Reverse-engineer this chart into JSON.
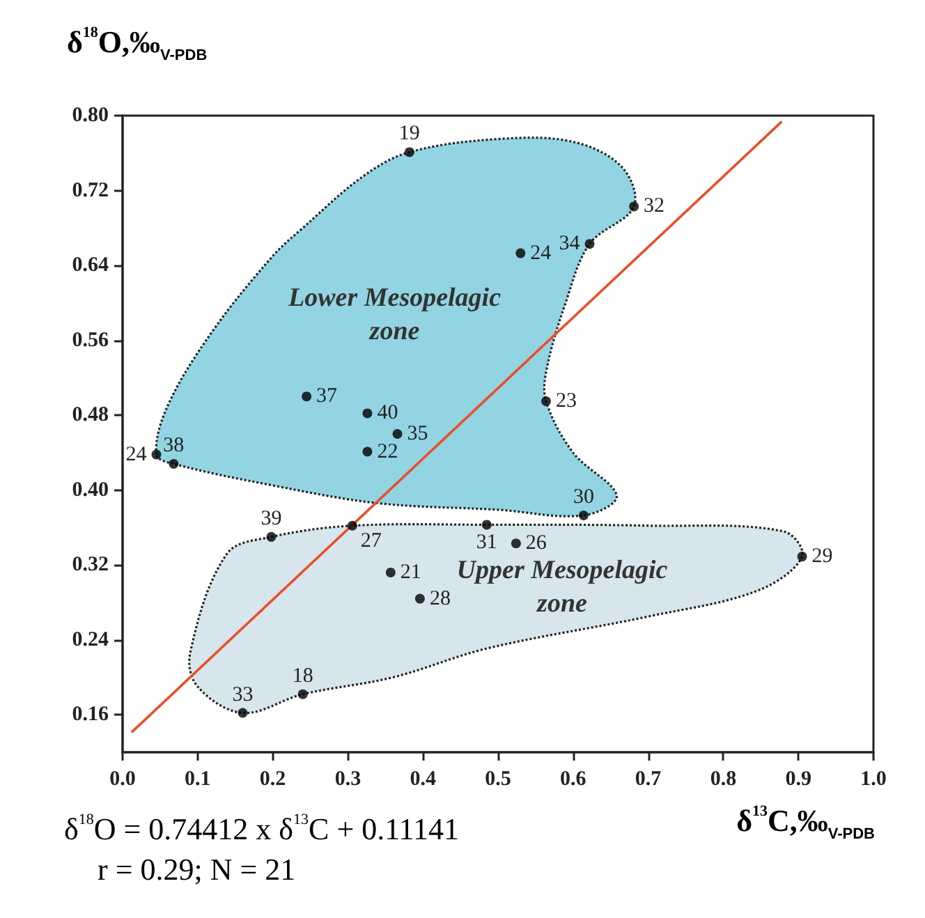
{
  "chart_data": {
    "type": "scatter",
    "xlabel": "δ$^{13}$C,‰$_{V-PDB}$",
    "ylabel": "δ$^{18}$O,‰$_{V-PDB}$",
    "xlim": [
      0,
      1
    ],
    "xticks": [
      {
        "value": 0,
        "label": "0.0"
      },
      0.1,
      0.2,
      0.3,
      0.4,
      0.5,
      0.6,
      0.7,
      0.8,
      0.9,
      {
        "value": 1,
        "label": "1.0"
      }
    ],
    "ylim": [
      0.12,
      0.8
    ],
    "yticks": [
      {
        "value": 0.16,
        "label": "0.16"
      },
      {
        "value": 0.24,
        "label": "0.24"
      },
      {
        "value": 0.32,
        "label": "0.32"
      },
      {
        "value": 0.4,
        "label": "0.40"
      },
      {
        "value": 0.48,
        "label": "0.48"
      },
      {
        "value": 0.56,
        "label": "0.56"
      },
      {
        "value": 0.64,
        "label": "0.64"
      },
      {
        "value": 0.72,
        "label": "0.72"
      },
      {
        "value": 0.8,
        "label": "0.80"
      }
    ],
    "grid": false,
    "marker": "circle",
    "series": [
      {
        "type": "area",
        "name": "Lower Mesopelagic zone",
        "color": "#93d4e3",
        "line_style": "dotted",
        "marker": "none",
        "x": [
          0.045,
          0.06,
          0.12,
          0.2,
          0.24,
          0.32,
          0.382,
          0.5,
          0.6,
          0.665,
          0.681,
          0.622,
          0.59,
          0.565,
          0.564,
          0.6,
          0.658,
          0.614,
          0.5,
          0.34,
          0.2,
          0.068
        ],
        "values": [
          0.438,
          0.49,
          0.57,
          0.65,
          0.68,
          0.735,
          0.761,
          0.775,
          0.772,
          0.745,
          0.703,
          0.663,
          0.6,
          0.53,
          0.495,
          0.44,
          0.394,
          0.373,
          0.379,
          0.386,
          0.405,
          0.428
        ]
      },
      {
        "type": "area",
        "name": "Upper Mesopelagic zone",
        "color": "#d6e6ec",
        "line_style": "dotted",
        "marker": "none",
        "x": [
          0.198,
          0.306,
          0.485,
          0.7,
          0.88,
          0.905,
          0.847,
          0.7,
          0.486,
          0.36,
          0.24,
          0.16,
          0.1,
          0.09,
          0.139
        ],
        "values": [
          0.35,
          0.362,
          0.363,
          0.362,
          0.356,
          0.329,
          0.293,
          0.265,
          0.231,
          0.2,
          0.182,
          0.162,
          0.19,
          0.226,
          0.332
        ]
      },
      {
        "type": "line",
        "color": "#e8502a",
        "line_style": "solid",
        "marker": "none",
        "x": [
          0.013,
          0.877
        ],
        "values": [
          0.142,
          0.793
        ]
      },
      {
        "color": "#000000",
        "x": [
          0.382,
          0.53,
          0.681,
          0.622,
          0.564,
          0.614,
          0.245,
          0.326,
          0.366,
          0.326,
          0.045,
          0.068,
          0.198,
          0.306,
          0.485,
          0.524,
          0.357,
          0.396,
          0.24,
          0.16,
          0.905
        ],
        "values": [
          0.761,
          0.653,
          0.703,
          0.663,
          0.495,
          0.373,
          0.5,
          0.482,
          0.46,
          0.441,
          0.438,
          0.428,
          0.35,
          0.362,
          0.363,
          0.343,
          0.312,
          0.284,
          0.182,
          0.162,
          0.329
        ]
      }
    ],
    "annotations": [
      {
        "text": "19",
        "x": 0.382,
        "y": 0.761
      },
      {
        "text": "24",
        "x": 0.53,
        "y": 0.653
      },
      {
        "text": "32",
        "x": 0.681,
        "y": 0.703
      },
      {
        "text": "34",
        "x": 0.622,
        "y": 0.663
      },
      {
        "text": "23",
        "x": 0.564,
        "y": 0.495
      },
      {
        "text": "30",
        "x": 0.614,
        "y": 0.373
      },
      {
        "text": "37",
        "x": 0.245,
        "y": 0.5
      },
      {
        "text": "40",
        "x": 0.326,
        "y": 0.482
      },
      {
        "text": "35",
        "x": 0.366,
        "y": 0.46
      },
      {
        "text": "22",
        "x": 0.326,
        "y": 0.441
      },
      {
        "text": "24",
        "x": 0.045,
        "y": 0.438
      },
      {
        "text": "38",
        "x": 0.068,
        "y": 0.428
      },
      {
        "text": "39",
        "x": 0.198,
        "y": 0.35
      },
      {
        "text": "27",
        "x": 0.306,
        "y": 0.362
      },
      {
        "text": "31",
        "x": 0.485,
        "y": 0.363
      },
      {
        "text": "26",
        "x": 0.524,
        "y": 0.343
      },
      {
        "text": "21",
        "x": 0.357,
        "y": 0.312
      },
      {
        "text": "28",
        "x": 0.396,
        "y": 0.284
      },
      {
        "text": "18",
        "x": 0.24,
        "y": 0.182
      },
      {
        "text": "33",
        "x": 0.16,
        "y": 0.162
      },
      {
        "text": "29",
        "x": 0.905,
        "y": 0.329
      },
      "δ$^{18}$O = 0.74412 x δ$^{13}$C + 0.11141",
      "r = 0.29; N = 21"
    ]
  }
}
